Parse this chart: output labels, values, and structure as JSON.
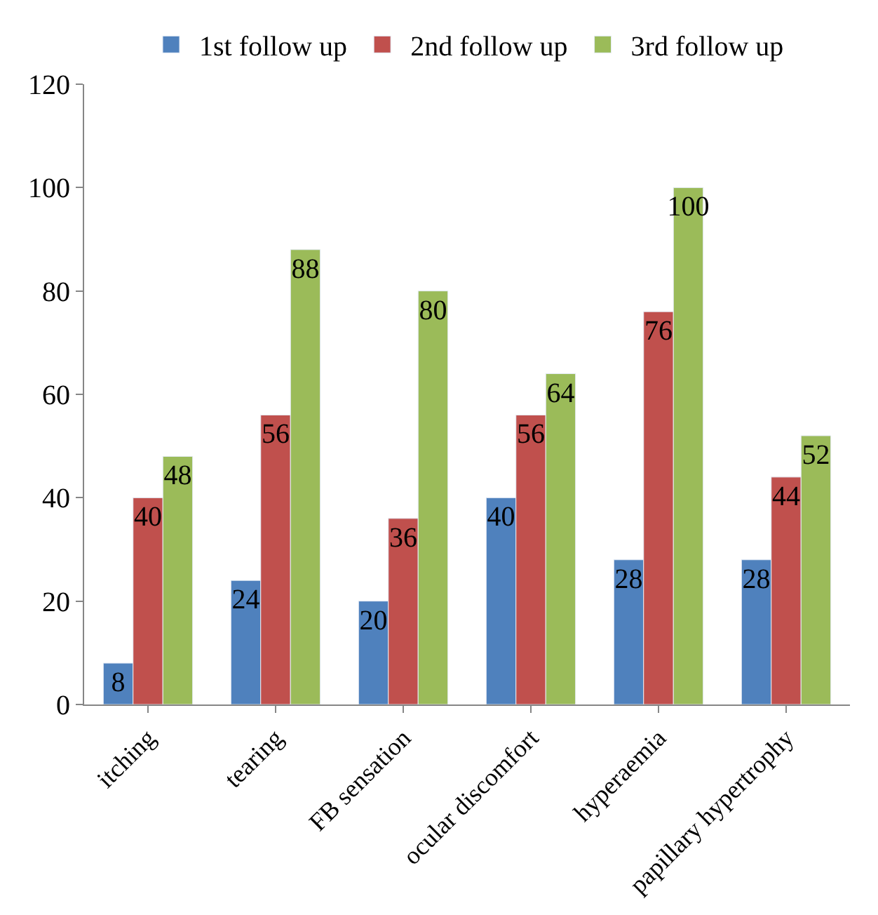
{
  "chart_data": {
    "type": "bar",
    "categories": [
      "itching",
      "tearing",
      "FB sensation",
      "ocular discomfort",
      "hyperaemia",
      "papillary hypertrophy"
    ],
    "series": [
      {
        "name": "1st follow up",
        "color": "#4f81bd",
        "values": [
          8,
          24,
          20,
          40,
          28,
          28
        ]
      },
      {
        "name": "2nd follow up",
        "color": "#c0504d",
        "values": [
          40,
          56,
          36,
          56,
          76,
          44
        ]
      },
      {
        "name": "3rd follow up",
        "color": "#9bbb59",
        "values": [
          48,
          88,
          80,
          64,
          100,
          52
        ]
      }
    ],
    "ylim": [
      0,
      120
    ],
    "yticks": [
      0,
      20,
      40,
      60,
      80,
      100,
      120
    ],
    "legend": "top",
    "data_labels": true
  }
}
